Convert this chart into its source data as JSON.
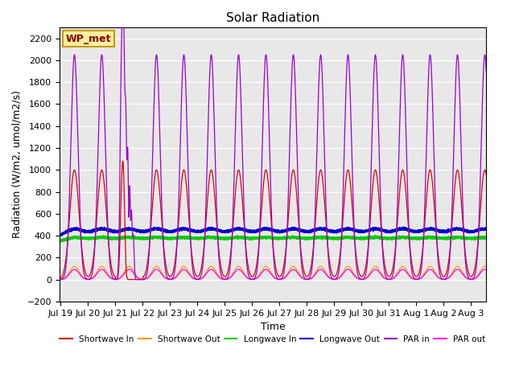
{
  "title": "Solar Radiation",
  "xlabel": "Time",
  "ylabel": "Radiation (W/m2, umol/m2/s)",
  "ylim": [
    -200,
    2300
  ],
  "yticks": [
    -200,
    0,
    200,
    400,
    600,
    800,
    1000,
    1200,
    1400,
    1600,
    1800,
    2000,
    2200
  ],
  "annotation_label": "WP_met",
  "bg_color": "#e8e8e8",
  "colors": {
    "shortwave_in": "#dd0000",
    "shortwave_out": "#ff9900",
    "longwave_in": "#00cc00",
    "longwave_out": "#0000cc",
    "par_in": "#9900cc",
    "par_out": "#ff00ff"
  },
  "legend": [
    {
      "label": "Shortwave In",
      "color": "#dd0000"
    },
    {
      "label": "Shortwave Out",
      "color": "#ff9900"
    },
    {
      "label": "Longwave In",
      "color": "#00cc00"
    },
    {
      "label": "Longwave Out",
      "color": "#0000cc"
    },
    {
      "label": "PAR in",
      "color": "#9900cc"
    },
    {
      "label": "PAR out",
      "color": "#ff00ff"
    }
  ],
  "xtick_labels": [
    "Jul 19",
    "Jul 20",
    "Jul 21",
    "Jul 22",
    "Jul 23",
    "Jul 24",
    "Jul 25",
    "Jul 26",
    "Jul 27",
    "Jul 28",
    "Jul 29",
    "Jul 30",
    "Jul 31",
    "Aug 1",
    "Aug 2",
    "Aug 3"
  ],
  "xtick_positions": [
    0,
    1,
    2,
    3,
    4,
    5,
    6,
    7,
    8,
    9,
    10,
    11,
    12,
    13,
    14,
    15
  ]
}
